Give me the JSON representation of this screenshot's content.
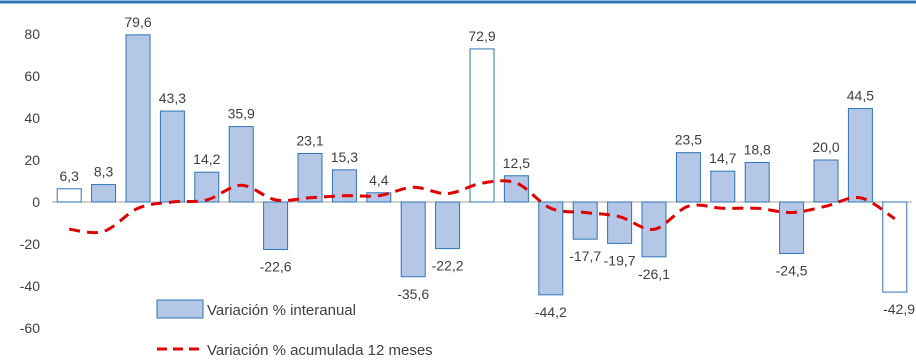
{
  "colors": {
    "top_rule": "#2E75B6",
    "bar_fill": "#B4C7E7",
    "bar_stroke": "#2E75B6",
    "highlight_fill": "#FFFFFF",
    "line": "#E00000",
    "text": "#404040"
  },
  "chart_data": {
    "type": "bar",
    "title": "",
    "xlabel": "",
    "ylabel": "",
    "ylim": [
      -60,
      80
    ],
    "yticks": [
      -60,
      -40,
      -20,
      0,
      20,
      40,
      60,
      80
    ],
    "grid": false,
    "legend": {
      "placement": "bottom-left",
      "entries": [
        {
          "label": "Variación % interanual",
          "kind": "bar"
        },
        {
          "label": "Variación % acumulada 12 meses",
          "kind": "dashed-line"
        }
      ]
    },
    "series": [
      {
        "name": "Variación % interanual",
        "type": "bar",
        "values": [
          6.3,
          8.3,
          79.6,
          43.3,
          14.2,
          35.9,
          -22.6,
          23.1,
          15.3,
          4.4,
          -35.6,
          -22.2,
          72.9,
          12.5,
          -44.2,
          -17.7,
          -19.7,
          -26.1,
          23.5,
          14.7,
          18.8,
          -24.5,
          20.0,
          44.5,
          -42.9
        ],
        "labels": [
          "6,3",
          "8,3",
          "79,6",
          "43,3",
          "14,2",
          "35,9",
          "-22,6",
          "23,1",
          "15,3",
          "4,4",
          "-35,6",
          "-22,2",
          "72,9",
          "12,5",
          "-44,2",
          "-17,7",
          "-19,7",
          "-26,1",
          "23,5",
          "14,7",
          "18,8",
          "-24,5",
          "20,0",
          "44,5",
          "-42,9"
        ],
        "highlight_indices": [
          0,
          12,
          24
        ]
      },
      {
        "name": "Variación % acumulada 12 meses",
        "type": "line",
        "style": "dashed",
        "values": [
          -13,
          -14,
          -3,
          0,
          1,
          8,
          1,
          2,
          3,
          3,
          7,
          4,
          9,
          9,
          -3,
          -5,
          -7,
          -13,
          -2,
          -3,
          -3,
          -5,
          -2,
          2,
          -8
        ]
      }
    ]
  }
}
